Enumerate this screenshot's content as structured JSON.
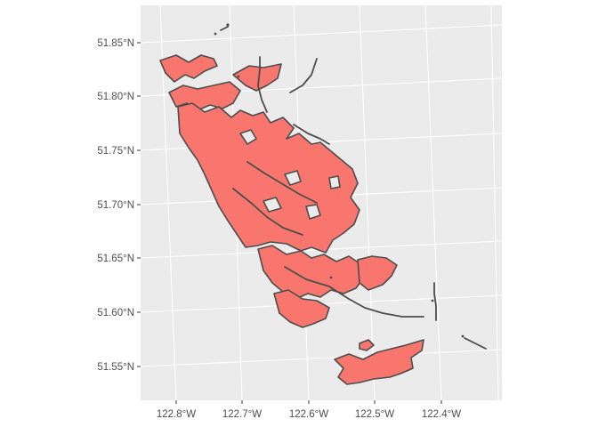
{
  "map": {
    "type": "map",
    "colors": {
      "panel_background": "#EBEBEB",
      "graticule": "#FFFFFF",
      "feature_fill": "#F8766D",
      "feature_outline": "#4D4D4D",
      "tick_text": "#4D4D4D"
    },
    "grid": true,
    "legend": "none",
    "longitude_labels": [
      "122.8°W",
      "122.7°W",
      "122.6°W",
      "122.5°W",
      "122.4°W"
    ],
    "latitude_labels": [
      "51.85°N",
      "51.80°N",
      "51.75°N",
      "51.70°N",
      "51.65°N",
      "51.60°N",
      "51.55°N"
    ]
  }
}
